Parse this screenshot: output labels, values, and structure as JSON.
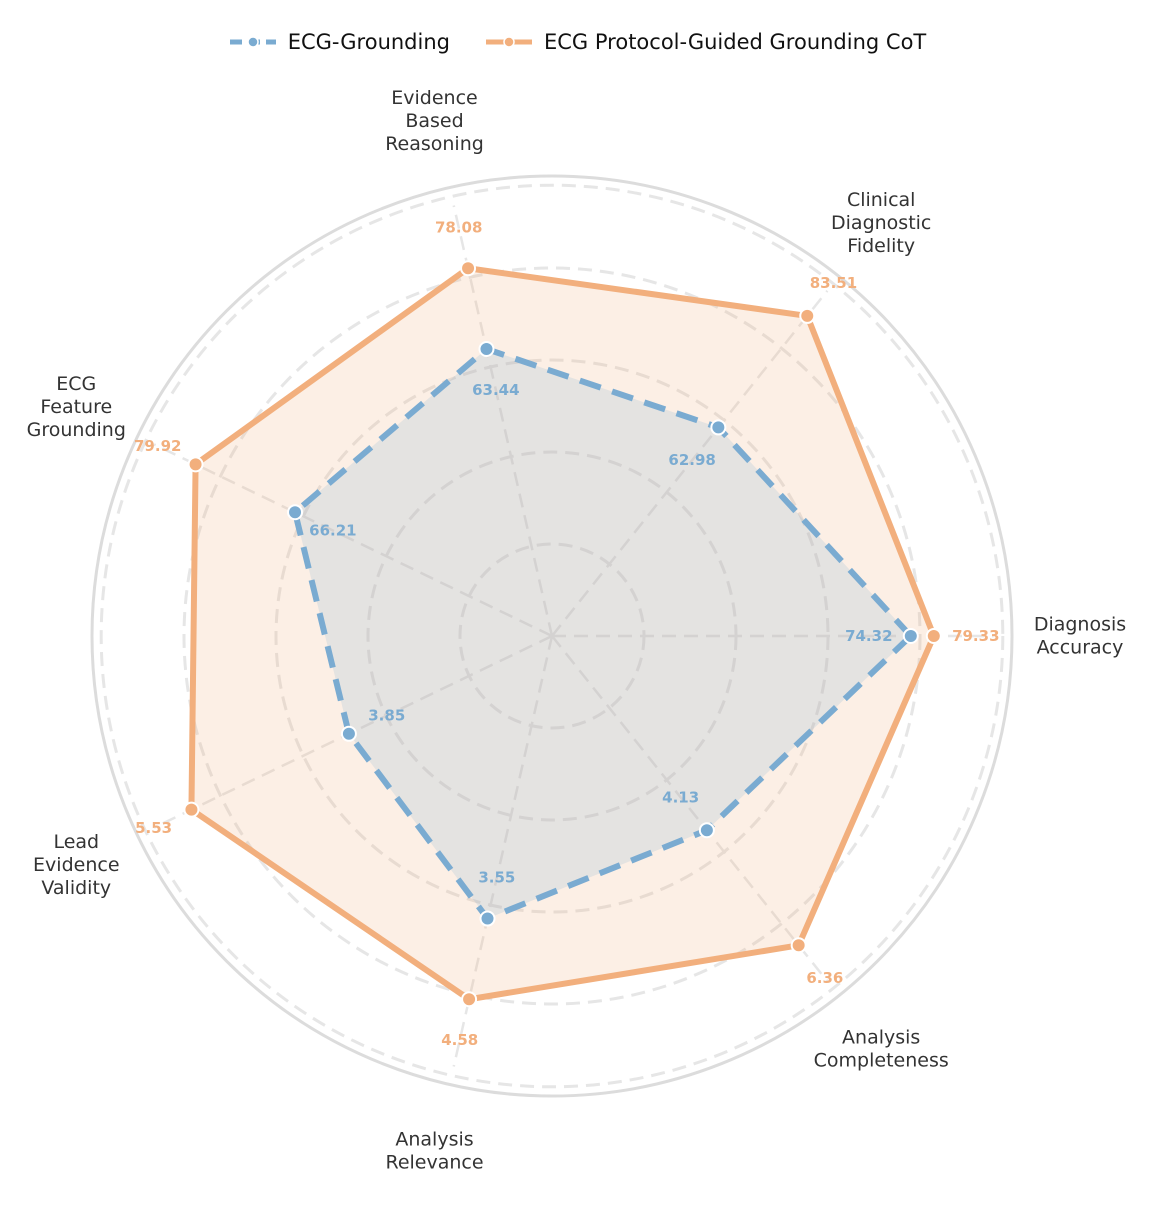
{
  "chart_data": {
    "type": "radar",
    "axes": [
      {
        "label": [
          "Diagnosis",
          "Accuracy"
        ]
      },
      {
        "label": [
          "Clinical",
          "Diagnostic",
          "Fidelity"
        ]
      },
      {
        "label": [
          "Evidence",
          "Based",
          "Reasoning"
        ]
      },
      {
        "label": [
          "ECG",
          "Feature",
          "Grounding"
        ]
      },
      {
        "label": [
          "Lead",
          "Evidence",
          "Validity"
        ]
      },
      {
        "label": [
          "Analysis",
          "Relevance"
        ]
      },
      {
        "label": [
          "Analysis",
          "Completeness"
        ]
      }
    ],
    "series": [
      {
        "name": "ECG-Grounding",
        "color": "#7aabd1",
        "line_style": "dashed",
        "values": [
          "74.32",
          "62.98",
          "63.44",
          "66.21",
          "3.85",
          "3.55",
          "4.13"
        ],
        "normalized": [
          0.78,
          0.58,
          0.64,
          0.62,
          0.49,
          0.63,
          0.54
        ]
      },
      {
        "name": "ECG Protocol-Guided Grounding CoT",
        "color": "#f2af7d",
        "line_style": "solid",
        "values": [
          "79.33",
          "83.51",
          "78.08",
          "79.92",
          "5.53",
          "4.58",
          "6.36"
        ],
        "normalized": [
          0.83,
          0.89,
          0.82,
          0.86,
          0.87,
          0.81,
          0.86
        ]
      }
    ],
    "grid": true,
    "legend_position": "top-center"
  }
}
